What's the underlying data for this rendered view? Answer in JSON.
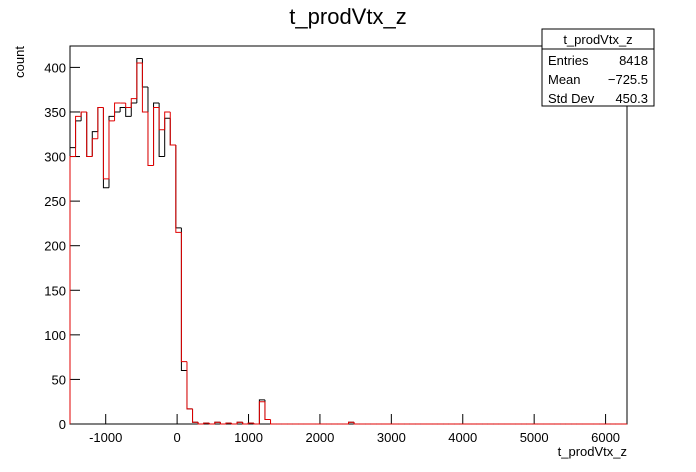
{
  "chart_data": {
    "type": "histogram",
    "title": "t_prodVtx_z",
    "x_label": "t_prodVtx_z",
    "y_label": "count",
    "bins": [
      -1500,
      -1422,
      -1344,
      -1266,
      -1188,
      -1110,
      -1032,
      -954,
      -876,
      -798,
      -720,
      -642,
      -564,
      -486,
      -408,
      -330,
      -252,
      -174,
      -96,
      -18,
      60,
      138,
      216,
      294,
      372,
      450,
      528,
      606,
      684,
      762,
      840,
      918,
      996,
      1074,
      1152,
      1230,
      1308,
      1386,
      1464,
      1542,
      1620,
      1698,
      1776,
      1854,
      1932,
      2010,
      2088,
      2166,
      2244,
      2322,
      2400,
      2478,
      2556,
      2634,
      2712,
      2790,
      2868,
      2946,
      3024,
      3102,
      3180,
      3258,
      3336,
      3414,
      3492,
      3570,
      3648,
      3726,
      3804,
      3882,
      3960,
      4038,
      4116,
      4194,
      4272,
      4350,
      4428,
      4506,
      4584,
      4662,
      4740,
      4818,
      4896,
      4974,
      5052,
      5130,
      5208,
      5286,
      5364,
      5442,
      5520,
      5598,
      5676,
      5754,
      5832,
      5910,
      5988,
      6066,
      6144,
      6222,
      6300
    ],
    "series": [
      {
        "color": "#000000",
        "values": [
          310,
          340,
          350,
          300,
          328,
          355,
          265,
          345,
          350,
          355,
          345,
          360,
          410,
          378,
          290,
          360,
          300,
          343,
          313,
          220,
          60,
          17,
          2,
          0,
          1,
          0,
          2,
          0,
          1,
          0,
          2,
          0,
          1,
          0,
          27,
          5,
          0,
          0,
          0,
          0,
          0,
          0,
          0,
          0,
          0,
          0,
          0,
          0,
          0,
          0,
          2,
          0,
          0,
          0,
          0,
          0,
          0,
          0,
          0,
          0,
          0,
          0,
          0,
          0,
          0,
          0,
          0,
          0,
          0,
          0,
          0,
          0,
          0,
          0,
          0,
          0,
          0,
          0,
          0,
          0,
          0,
          0,
          0,
          0,
          0,
          0,
          0,
          0,
          0,
          0,
          0,
          0,
          0,
          0,
          0,
          0,
          0,
          0,
          0,
          0
        ]
      },
      {
        "color": "#e00000",
        "values": [
          300,
          345,
          350,
          300,
          320,
          355,
          275,
          340,
          360,
          360,
          355,
          365,
          405,
          350,
          290,
          355,
          330,
          350,
          313,
          215,
          70,
          17,
          2,
          0,
          1,
          0,
          2,
          0,
          1,
          0,
          2,
          0,
          1,
          0,
          25,
          5,
          0,
          0,
          0,
          0,
          0,
          0,
          0,
          0,
          0,
          0,
          0,
          0,
          0,
          0,
          2,
          0,
          0,
          0,
          0,
          0,
          0,
          0,
          0,
          0,
          0,
          0,
          0,
          0,
          0,
          0,
          0,
          0,
          0,
          0,
          0,
          0,
          0,
          0,
          0,
          0,
          0,
          0,
          0,
          0,
          0,
          0,
          0,
          0,
          0,
          0,
          0,
          0,
          0,
          0,
          0,
          0,
          0,
          0,
          0,
          0,
          0,
          0,
          0,
          0
        ]
      }
    ],
    "xlim": [
      -1500,
      6300
    ],
    "xticks": [
      -1000,
      0,
      1000,
      2000,
      3000,
      4000,
      5000,
      6000
    ],
    "ylim": [
      0,
      424
    ],
    "yticks": [
      0,
      50,
      100,
      150,
      200,
      250,
      300,
      350,
      400
    ],
    "stats": {
      "title": "t_prodVtx_z",
      "rows": [
        [
          "Entries",
          "8418"
        ],
        [
          "Mean",
          "−725.5"
        ],
        [
          "Std Dev",
          "450.3"
        ]
      ]
    }
  }
}
